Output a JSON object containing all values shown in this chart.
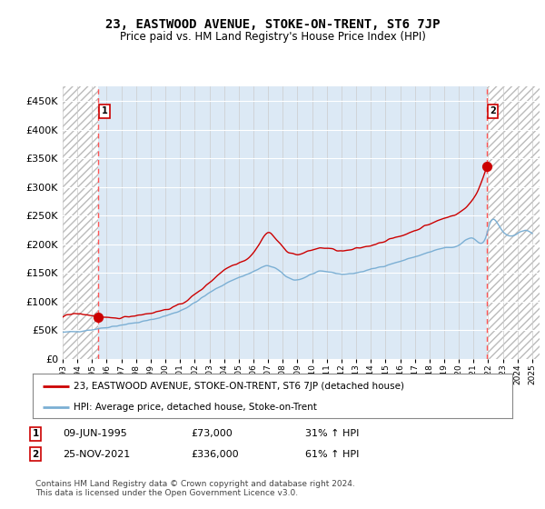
{
  "title": "23, EASTWOOD AVENUE, STOKE-ON-TRENT, ST6 7JP",
  "subtitle": "Price paid vs. HM Land Registry's House Price Index (HPI)",
  "legend_line1": "23, EASTWOOD AVENUE, STOKE-ON-TRENT, ST6 7JP (detached house)",
  "legend_line2": "HPI: Average price, detached house, Stoke-on-Trent",
  "annotation1_date": "09-JUN-1995",
  "annotation1_price": "£73,000",
  "annotation1_hpi": "31% ↑ HPI",
  "annotation2_date": "25-NOV-2021",
  "annotation2_price": "£336,000",
  "annotation2_hpi": "61% ↑ HPI",
  "footer": "Contains HM Land Registry data © Crown copyright and database right 2024.\nThis data is licensed under the Open Government Licence v3.0.",
  "sale_color": "#cc0000",
  "hpi_color": "#7bafd4",
  "background_color": "#dce9f5",
  "ylim": [
    0,
    475000
  ],
  "yticks": [
    0,
    50000,
    100000,
    150000,
    200000,
    250000,
    300000,
    350000,
    400000,
    450000
  ],
  "sale1_x": 1995.44,
  "sale1_y": 73000,
  "sale2_x": 2021.9,
  "sale2_y": 336000,
  "xmin": 1993.0,
  "xmax": 2025.5
}
